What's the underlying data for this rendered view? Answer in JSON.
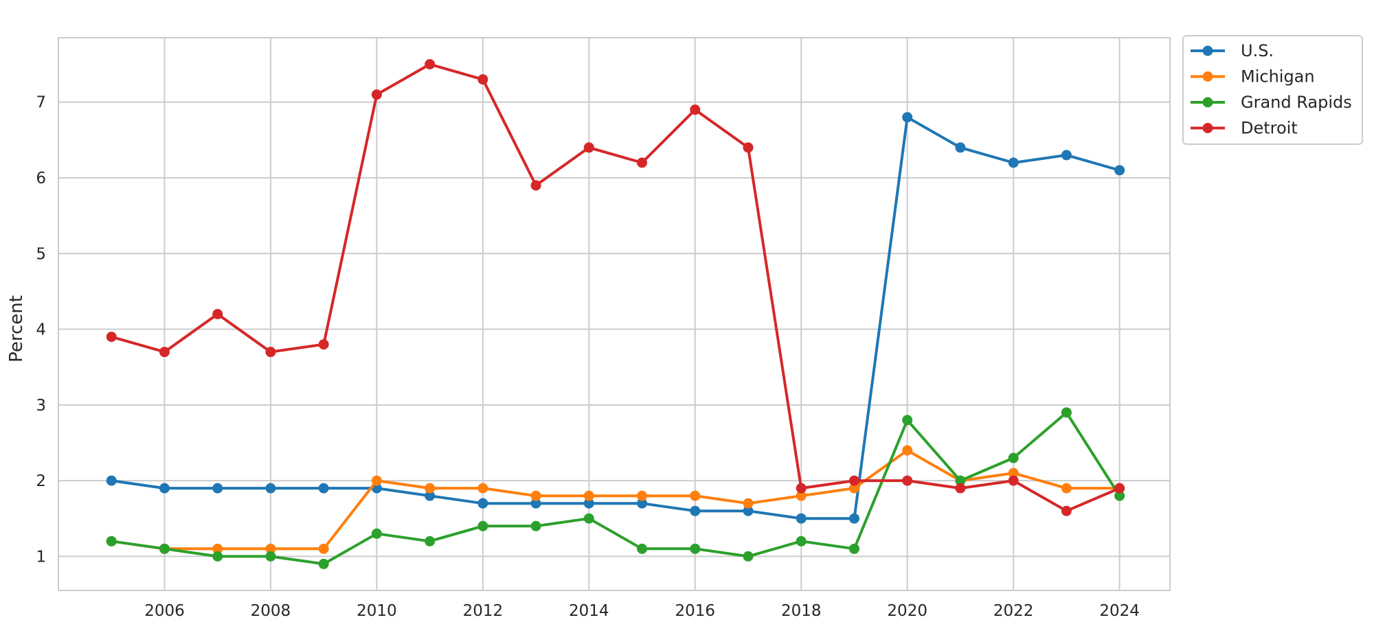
{
  "chart_data": {
    "type": "line",
    "title": "",
    "xlabel": "",
    "ylabel": "Percent",
    "x": [
      2005,
      2006,
      2007,
      2008,
      2009,
      2010,
      2011,
      2012,
      2013,
      2014,
      2015,
      2016,
      2017,
      2018,
      2019,
      2020,
      2021,
      2022,
      2023,
      2024
    ],
    "xlim": [
      2004.0,
      2024.95
    ],
    "ylim": [
      0.55,
      7.85
    ],
    "x_ticks": [
      2006,
      2008,
      2010,
      2012,
      2014,
      2016,
      2018,
      2020,
      2022,
      2024
    ],
    "y_ticks": [
      1,
      2,
      3,
      4,
      5,
      6,
      7
    ],
    "grid": true,
    "legend_position": "outside-top-right",
    "series": [
      {
        "name": "U.S.",
        "color": "#1f77b4",
        "values": [
          2.0,
          1.9,
          1.9,
          1.9,
          1.9,
          1.9,
          1.8,
          1.7,
          1.7,
          1.7,
          1.7,
          1.6,
          1.6,
          1.5,
          1.5,
          6.8,
          6.4,
          6.2,
          6.3,
          6.1
        ]
      },
      {
        "name": "Michigan",
        "color": "#ff7f0e",
        "values": [
          1.2,
          1.1,
          1.1,
          1.1,
          1.1,
          2.0,
          1.9,
          1.9,
          1.8,
          1.8,
          1.8,
          1.8,
          1.7,
          1.8,
          1.9,
          2.4,
          2.0,
          2.1,
          1.9,
          1.9
        ]
      },
      {
        "name": "Grand Rapids",
        "color": "#2ca02c",
        "values": [
          1.2,
          1.1,
          1.0,
          1.0,
          0.9,
          1.3,
          1.2,
          1.4,
          1.4,
          1.5,
          1.1,
          1.1,
          1.0,
          1.2,
          1.1,
          2.8,
          2.0,
          2.3,
          2.9,
          1.8
        ]
      },
      {
        "name": "Detroit",
        "color": "#d62728",
        "values": [
          3.9,
          3.7,
          4.2,
          3.7,
          3.8,
          7.1,
          7.5,
          7.3,
          5.9,
          6.4,
          6.2,
          6.9,
          6.4,
          1.9,
          2.0,
          2.0,
          1.9,
          2.0,
          1.6,
          1.9
        ]
      }
    ]
  }
}
